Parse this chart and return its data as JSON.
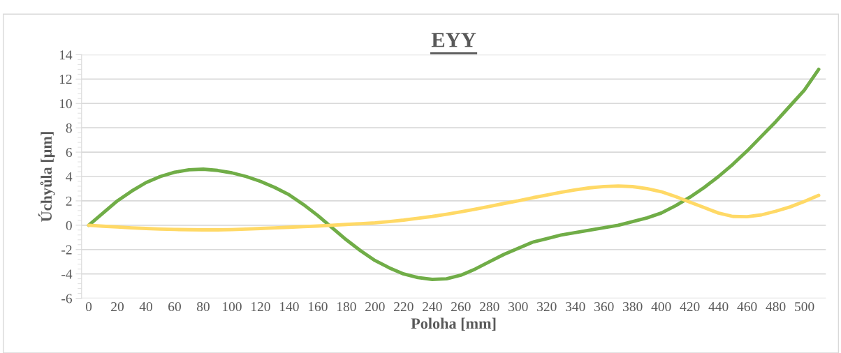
{
  "chart_data": {
    "type": "line",
    "title": "EYY",
    "xlabel": "Poloha [mm]",
    "ylabel": "Úchyůla [µm]",
    "categories": [
      "0",
      null,
      "20",
      null,
      "40",
      null,
      "60",
      null,
      "80",
      null,
      "100",
      null,
      "120",
      null,
      "140",
      null,
      "160",
      null,
      "180",
      null,
      "200",
      null,
      "220",
      null,
      "240",
      null,
      "260",
      null,
      "280",
      null,
      "300",
      null,
      "320",
      null,
      "340",
      null,
      "360",
      null,
      "380",
      null,
      "400",
      null,
      "420",
      null,
      "440",
      null,
      "460",
      null,
      "480",
      null,
      "500",
      null
    ],
    "series": [
      {
        "color": "#70ad47",
        "values": [
          0,
          1.0,
          2.0,
          2.8,
          3.5,
          4.0,
          4.35,
          4.55,
          4.6,
          4.5,
          4.3,
          4.0,
          3.6,
          3.1,
          2.5,
          1.7,
          0.8,
          -0.2,
          -1.2,
          -2.1,
          -2.9,
          -3.5,
          -4.0,
          -4.3,
          -4.45,
          -4.4,
          -4.1,
          -3.6,
          -3.0,
          -2.4,
          -1.9,
          -1.4,
          -1.1,
          -0.8,
          -0.6,
          -0.4,
          -0.2,
          0.0,
          0.3,
          0.6,
          1.0,
          1.6,
          2.3,
          3.1,
          4.0,
          5.0,
          6.1,
          7.3,
          8.5,
          9.8,
          11.1,
          12.8
        ]
      },
      {
        "color": "#ffd966",
        "values": [
          0,
          -0.08,
          -0.15,
          -0.22,
          -0.27,
          -0.32,
          -0.35,
          -0.37,
          -0.38,
          -0.38,
          -0.36,
          -0.32,
          -0.27,
          -0.22,
          -0.17,
          -0.12,
          -0.07,
          0.0,
          0.06,
          0.13,
          0.2,
          0.3,
          0.42,
          0.57,
          0.72,
          0.9,
          1.1,
          1.32,
          1.55,
          1.78,
          2.0,
          2.25,
          2.48,
          2.7,
          2.9,
          3.07,
          3.18,
          3.22,
          3.17,
          3.0,
          2.75,
          2.35,
          1.9,
          1.45,
          1.0,
          0.72,
          0.7,
          0.85,
          1.15,
          1.5,
          1.95,
          2.45
        ]
      }
    ],
    "ylim": [
      -6,
      14
    ],
    "yticks": [
      -6,
      -4,
      -2,
      0,
      2,
      4,
      6,
      8,
      10,
      12,
      14
    ],
    "grid": "y",
    "marker": "none",
    "line_style": "solid"
  }
}
